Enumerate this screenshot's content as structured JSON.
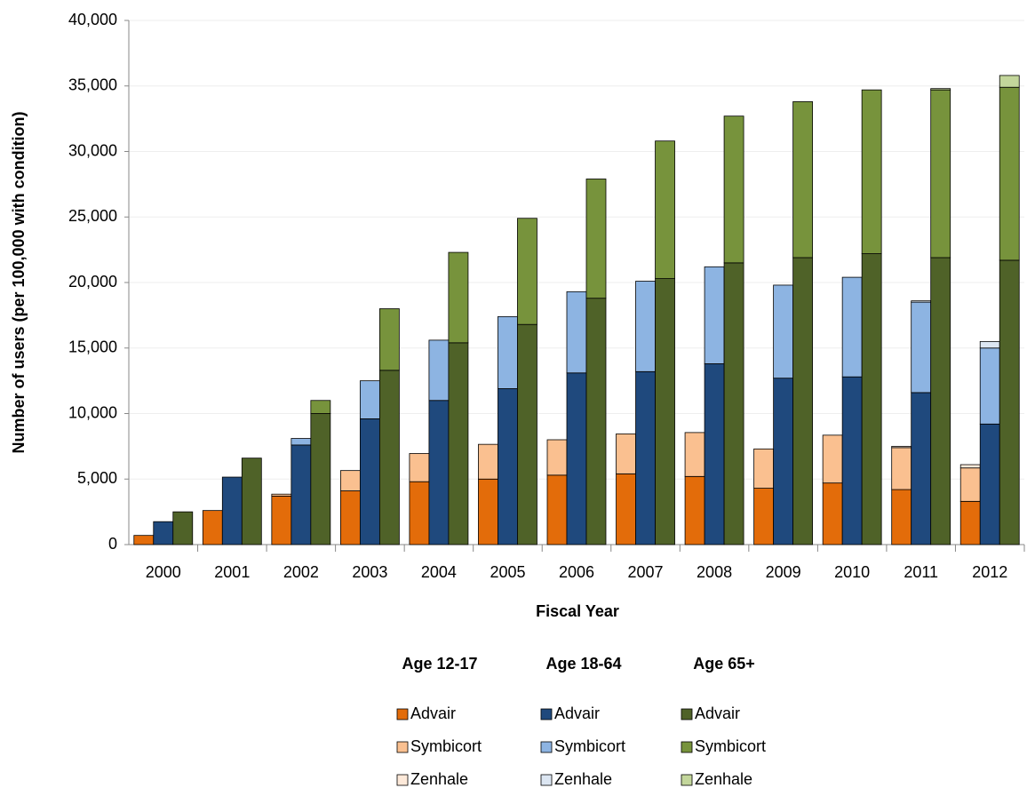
{
  "chart_data": {
    "type": "grouped-stacked-bar",
    "x_label": "Fiscal Year",
    "y_label": "Number of users (per 100,000 with condition)",
    "categories": [
      "2000",
      "2001",
      "2002",
      "2003",
      "2004",
      "2005",
      "2006",
      "2007",
      "2008",
      "2009",
      "2010",
      "2011",
      "2012"
    ],
    "ylim": [
      0,
      40000
    ],
    "yticks": [
      0,
      {
        "value": 5000,
        "label": "5,000"
      },
      {
        "value": 10000,
        "label": "10,000"
      },
      {
        "value": 15000,
        "label": "15,000"
      },
      {
        "value": 20000,
        "label": "20,000"
      },
      {
        "value": 25000,
        "label": "25,000"
      },
      {
        "value": 30000,
        "label": "30,000"
      },
      {
        "value": 35000,
        "label": "35,000"
      },
      {
        "value": 40000,
        "label": "40,000"
      }
    ],
    "grid": true,
    "groups": [
      {
        "name": "Age 12-17",
        "series": [
          {
            "name": "Advair",
            "color": "#e36c0a",
            "values": [
              700,
              2600,
              3700,
              4100,
              4800,
              5000,
              5300,
              5400,
              5200,
              4300,
              4700,
              4200,
              3300
            ]
          },
          {
            "name": "Symbicort",
            "color": "#fac090",
            "values": [
              0,
              0,
              150,
              1550,
              2150,
              2650,
              2700,
              3050,
              3350,
              3000,
              3650,
              3200,
              2550
            ]
          },
          {
            "name": "Zenhale",
            "color": "#fde9d9",
            "values": [
              0,
              0,
              0,
              0,
              0,
              0,
              0,
              0,
              0,
              0,
              0,
              100,
              250
            ]
          }
        ]
      },
      {
        "name": "Age 18-64",
        "series": [
          {
            "name": "Advair",
            "color": "#1f497d",
            "values": [
              1750,
              5150,
              7600,
              9600,
              11000,
              11900,
              13100,
              13200,
              13800,
              12700,
              12800,
              11600,
              9200
            ]
          },
          {
            "name": "Symbicort",
            "color": "#8db4e2",
            "values": [
              0,
              0,
              500,
              2900,
              4600,
              5500,
              6200,
              6900,
              7400,
              7100,
              7600,
              6900,
              5800
            ]
          },
          {
            "name": "Zenhale",
            "color": "#dce6f2",
            "values": [
              0,
              0,
              0,
              0,
              0,
              0,
              0,
              0,
              0,
              0,
              0,
              100,
              500
            ]
          }
        ]
      },
      {
        "name": "Age 65+",
        "series": [
          {
            "name": "Advair",
            "color": "#4f6228",
            "values": [
              2500,
              6600,
              10000,
              13300,
              15400,
              16800,
              18800,
              20300,
              21500,
              21900,
              22200,
              21900,
              21700
            ]
          },
          {
            "name": "Symbicort",
            "color": "#77933c",
            "values": [
              0,
              0,
              1000,
              4700,
              6900,
              8100,
              9100,
              10500,
              11200,
              11900,
              12500,
              12800,
              13200
            ]
          },
          {
            "name": "Zenhale",
            "color": "#c3d69b",
            "values": [
              0,
              0,
              0,
              0,
              0,
              0,
              0,
              0,
              0,
              0,
              0,
              100,
              900
            ]
          }
        ]
      }
    ]
  }
}
